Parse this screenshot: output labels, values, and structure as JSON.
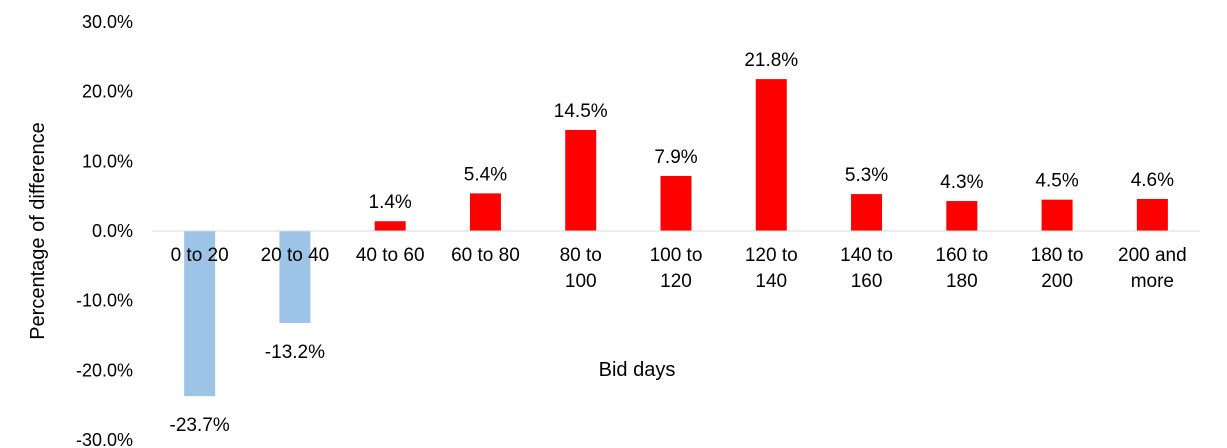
{
  "chart_data": {
    "type": "bar",
    "title": "",
    "xlabel": "Bid days",
    "ylabel": "Percentage of difference",
    "ylim": [
      -30,
      30
    ],
    "yticks": [
      30,
      20,
      10,
      0,
      -10,
      -20,
      -30
    ],
    "ytick_labels": [
      "30.0%",
      "20.0%",
      "10.0%",
      "0.0%",
      "-10.0%",
      "-20.0%",
      "-30.0%"
    ],
    "categories": [
      [
        "0 to 20"
      ],
      [
        "20 to 40"
      ],
      [
        "40 to 60"
      ],
      [
        "60 to 80"
      ],
      [
        "80 to",
        "100"
      ],
      [
        "100 to",
        "120"
      ],
      [
        "120 to",
        "140"
      ],
      [
        "140 to",
        "160"
      ],
      [
        "160 to",
        "180"
      ],
      [
        "180 to",
        "200"
      ],
      [
        "200 and",
        "more"
      ]
    ],
    "values": [
      -23.7,
      -13.2,
      1.4,
      5.4,
      14.5,
      7.9,
      21.8,
      5.3,
      4.3,
      4.5,
      4.6
    ],
    "value_labels": [
      "-23.7%",
      "-13.2%",
      "1.4%",
      "5.4%",
      "14.5%",
      "7.9%",
      "21.8%",
      "5.3%",
      "4.3%",
      "4.5%",
      "4.6%"
    ],
    "colors": {
      "positive": "#ff0000",
      "negative": "#9dc3e6"
    },
    "grid": false,
    "legend": "none"
  }
}
